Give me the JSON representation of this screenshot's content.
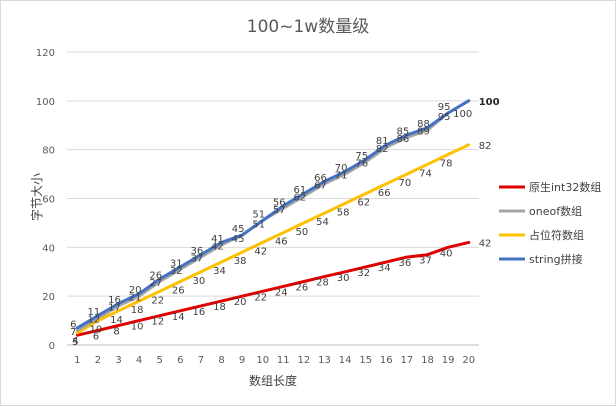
{
  "chart_data": {
    "type": "line",
    "title": "100~1w数量级",
    "xlabel": "数组长度",
    "ylabel": "字节大小",
    "ylim": [
      0,
      120
    ],
    "yticks": [
      0,
      20,
      40,
      60,
      80,
      100,
      120
    ],
    "grid": true,
    "legend_position": "right",
    "x": [
      1,
      2,
      3,
      4,
      5,
      6,
      7,
      8,
      9,
      10,
      11,
      12,
      13,
      14,
      15,
      16,
      17,
      18,
      19,
      20
    ],
    "categories": [
      "1",
      "2",
      "3",
      "4",
      "5",
      "6",
      "7",
      "8",
      "9",
      "10",
      "11",
      "12",
      "13",
      "14",
      "15",
      "16",
      "17",
      "18",
      "19",
      "20"
    ],
    "series": [
      {
        "name": "原生int32数组",
        "color": "#e00000",
        "values": [
          4,
          6,
          8,
          10,
          12,
          14,
          16,
          18,
          20,
          22,
          24,
          26,
          28,
          30,
          32,
          34,
          36,
          37,
          40,
          42
        ],
        "labels": [
          "4",
          "6",
          "8",
          "10",
          "12",
          "14",
          "16",
          "18",
          "20",
          "22",
          "24",
          "26",
          "28",
          "30",
          "32",
          "34",
          "36",
          "37",
          "40",
          "42"
        ]
      },
      {
        "name": "oneof数组",
        "color": "#a5a5a5",
        "values": [
          6,
          11,
          16,
          20,
          26,
          31,
          36,
          41,
          45,
          51,
          56,
          61,
          66,
          70,
          75,
          81,
          85,
          88,
          95,
          100
        ],
        "labels": [
          "6",
          "11",
          "16",
          "20",
          "26",
          "31",
          "36",
          "41",
          "45",
          "51",
          "56",
          "61",
          "66",
          "70",
          "75",
          "81",
          "85",
          "88",
          "95",
          "100"
        ]
      },
      {
        "name": "占位符数组",
        "color": "#ffc000",
        "values": [
          5,
          10,
          14,
          18,
          22,
          26,
          30,
          34,
          38,
          42,
          46,
          50,
          54,
          58,
          62,
          66,
          70,
          74,
          78,
          82
        ],
        "labels": [
          "5",
          "10",
          "14",
          "18",
          "22",
          "26",
          "30",
          "34",
          "38",
          "42",
          "46",
          "50",
          "54",
          "58",
          "62",
          "66",
          "70",
          "74",
          "78",
          "82"
        ]
      },
      {
        "name": "string拼接",
        "color": "#4472c4",
        "values": [
          7,
          12,
          17,
          21,
          27,
          32,
          37,
          42,
          45,
          51,
          57,
          62,
          67,
          71,
          76,
          82,
          86,
          89,
          95,
          100
        ],
        "labels": [
          "7",
          "12",
          "17",
          "21",
          "27",
          "32",
          "37",
          "42",
          "45",
          "51",
          "57",
          "62",
          "67",
          "71",
          "76",
          "82",
          "86",
          "89",
          "95",
          "100"
        ]
      }
    ]
  }
}
